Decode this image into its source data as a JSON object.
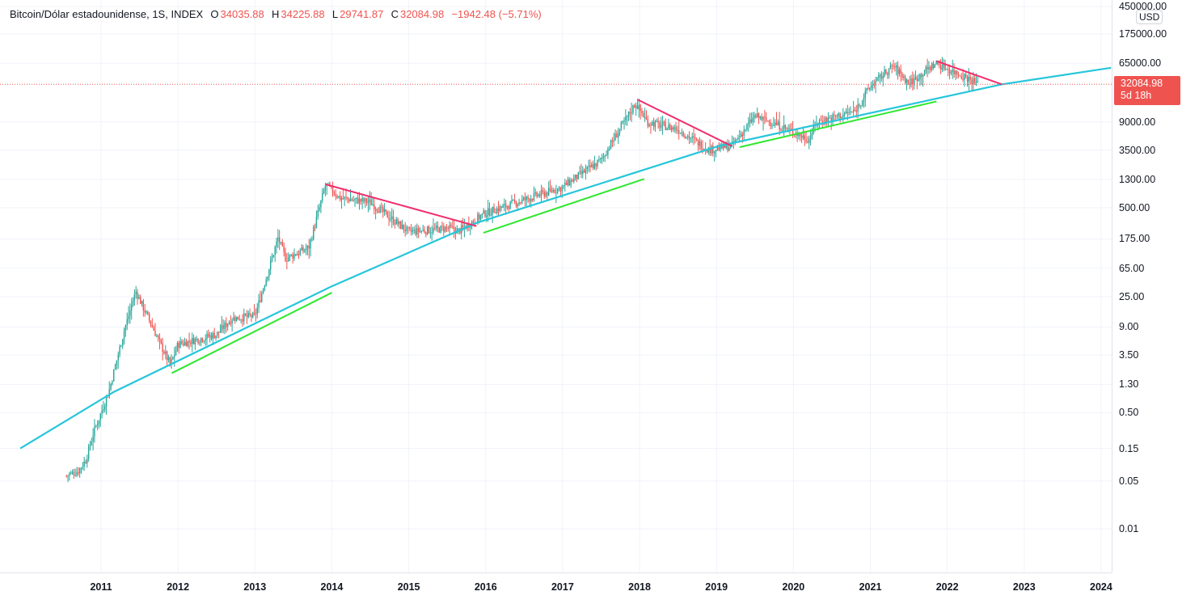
{
  "legend": {
    "symbol": "Bitcoin/Dólar estadounidense, 1S, INDEX",
    "o_label": "O",
    "o": "34035.88",
    "h_label": "H",
    "h": "34225.88",
    "l_label": "L",
    "l": "29741.87",
    "c_label": "C",
    "c": "32084.98",
    "change": "−1942.48 (−5.71%)"
  },
  "price_axis": {
    "currency": "USD",
    "last_price": "32084.98",
    "countdown": "5d 18h",
    "labels": [
      "450000.00",
      "175000.00",
      "65000.00",
      "9000.00",
      "3500.00",
      "1300.00",
      "500.00",
      "175.00",
      "65.00",
      "25.00",
      "9.00",
      "3.50",
      "1.30",
      "0.50",
      "0.15",
      "0.05",
      "0.01"
    ]
  },
  "time_axis": {
    "labels": [
      "2011",
      "2012",
      "2013",
      "2014",
      "2015",
      "2016",
      "2017",
      "2018",
      "2019",
      "2020",
      "2021",
      "2022",
      "2023",
      "2024"
    ]
  },
  "colors": {
    "up": "#26a69a",
    "down": "#ef5350",
    "trend": "#26c6da",
    "resistance": "#f02e6e",
    "support": "#2ee82e"
  },
  "chart_data": {
    "type": "candlestick",
    "scale": "log",
    "interval": "1W",
    "price_path": [
      [
        2010.55,
        0.06
      ],
      [
        2010.7,
        0.07
      ],
      [
        2010.8,
        0.1
      ],
      [
        2010.9,
        0.25
      ],
      [
        2011.1,
        1
      ],
      [
        2011.3,
        8
      ],
      [
        2011.45,
        30
      ],
      [
        2011.6,
        13
      ],
      [
        2011.9,
        2.5
      ],
      [
        2012.0,
        5
      ],
      [
        2012.5,
        7
      ],
      [
        2012.7,
        12
      ],
      [
        2013.0,
        13
      ],
      [
        2013.3,
        180
      ],
      [
        2013.4,
        90
      ],
      [
        2013.7,
        130
      ],
      [
        2013.92,
        1100
      ],
      [
        2014.1,
        700
      ],
      [
        2014.5,
        600
      ],
      [
        2015.0,
        220
      ],
      [
        2015.5,
        250
      ],
      [
        2015.65,
        230
      ],
      [
        2016.0,
        420
      ],
      [
        2016.5,
        650
      ],
      [
        2017.0,
        1000
      ],
      [
        2017.5,
        2500
      ],
      [
        2017.95,
        17000
      ],
      [
        2018.1,
        9000
      ],
      [
        2018.5,
        7000
      ],
      [
        2018.9,
        3500
      ],
      [
        2019.2,
        4000
      ],
      [
        2019.5,
        11000
      ],
      [
        2019.9,
        7300
      ],
      [
        2020.2,
        5000
      ],
      [
        2020.3,
        9000
      ],
      [
        2020.8,
        13000
      ],
      [
        2021.0,
        30000
      ],
      [
        2021.3,
        60000
      ],
      [
        2021.5,
        33000
      ],
      [
        2021.85,
        65000
      ],
      [
        2022.3,
        38000
      ],
      [
        2022.4,
        32084.98
      ]
    ],
    "trend_curve": [
      [
        2009.95,
        0.15
      ],
      [
        2011.16,
        1.0
      ],
      [
        2013.99,
        35
      ],
      [
        2015.88,
        300
      ],
      [
        2019.03,
        4000
      ],
      [
        2022.71,
        32000
      ],
      [
        2024.13,
        56000
      ]
    ],
    "resistance_lines": [
      [
        [
          2013.92,
          1100
        ],
        [
          2015.88,
          270
        ]
      ],
      [
        [
          2017.98,
          19000
        ],
        [
          2019.2,
          4000
        ]
      ],
      [
        [
          2021.86,
          70000
        ],
        [
          2022.71,
          32000
        ]
      ]
    ],
    "support_lines": [
      [
        [
          2011.92,
          1.9
        ],
        [
          2014.0,
          28.6
        ]
      ],
      [
        [
          2015.97,
          215
        ],
        [
          2018.06,
          1320
        ]
      ],
      [
        [
          2019.3,
          3850
        ],
        [
          2021.86,
          18000
        ]
      ]
    ]
  }
}
